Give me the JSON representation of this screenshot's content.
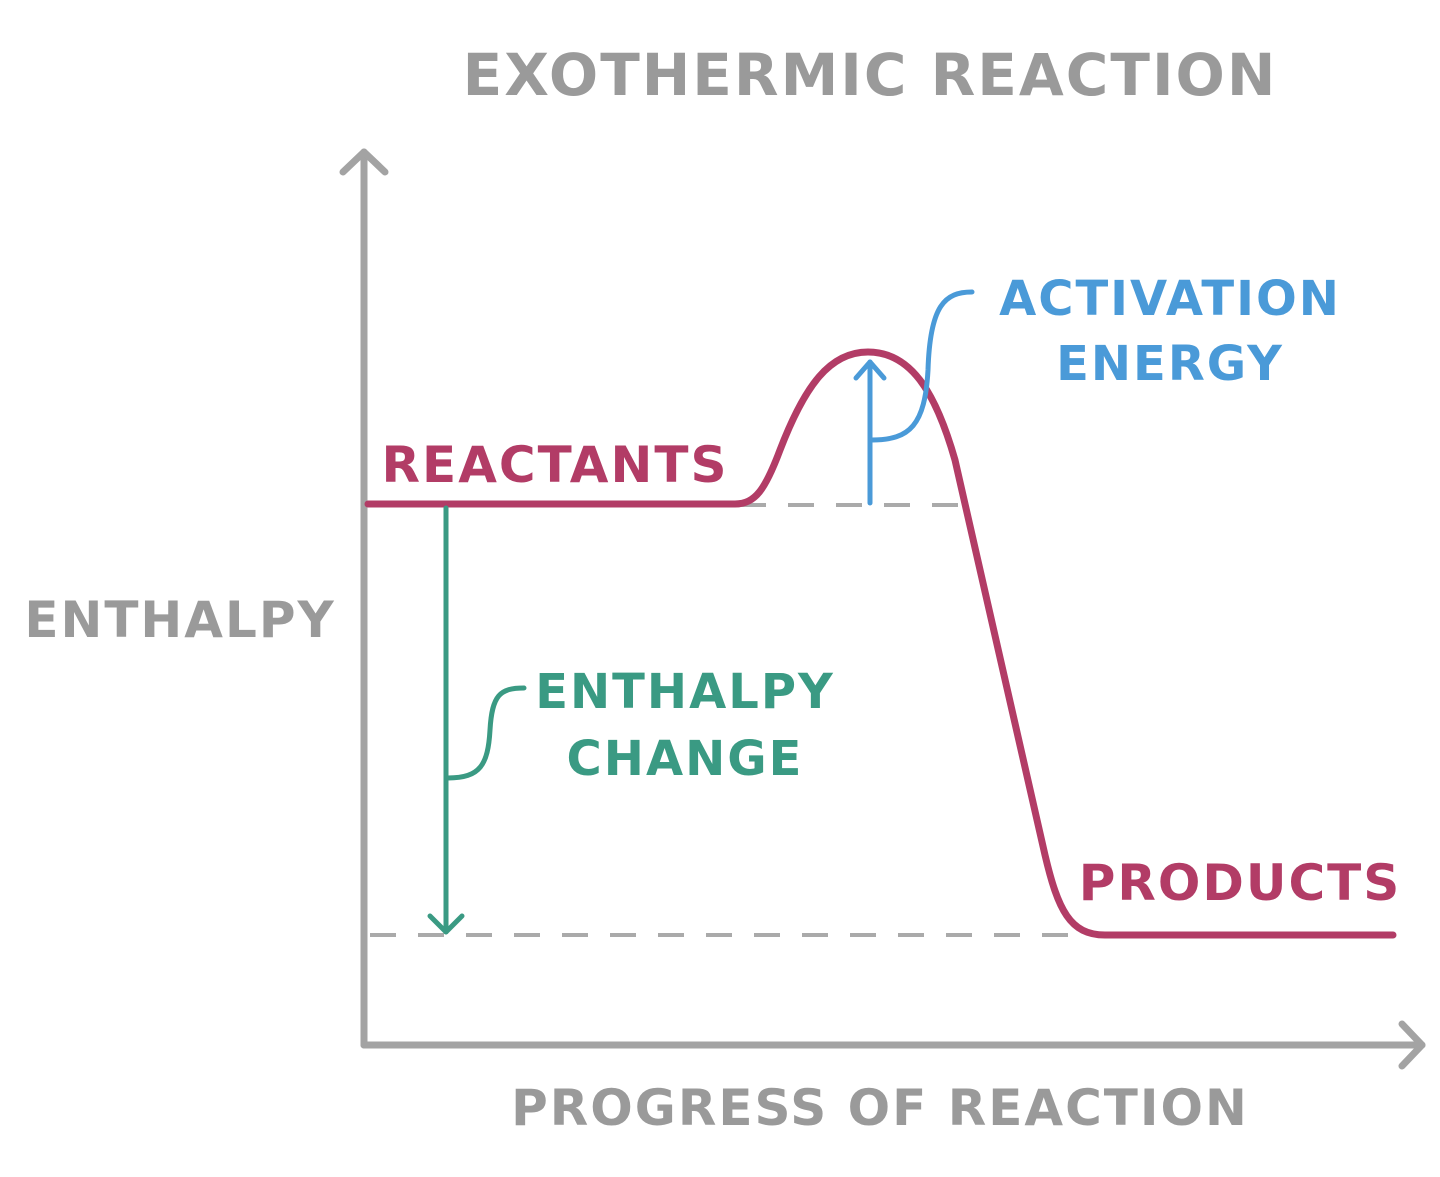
{
  "title": "EXOTHERMIC REACTION",
  "y_axis_label": "ENTHALPY",
  "x_axis_label": "PROGRESS OF REACTION",
  "labels": {
    "reactants": "REACTANTS",
    "products": "PRODUCTS",
    "activation_energy": [
      "ACTIVATION",
      "ENERGY"
    ],
    "enthalpy_change": [
      "ENTHALPY",
      "CHANGE"
    ]
  },
  "colors": {
    "axis": "#a3a3a3",
    "curve": "#b23c66",
    "activation": "#4a9ad8",
    "enthalpy_change": "#3a9a83",
    "dashed": "#aaaaaa"
  }
}
